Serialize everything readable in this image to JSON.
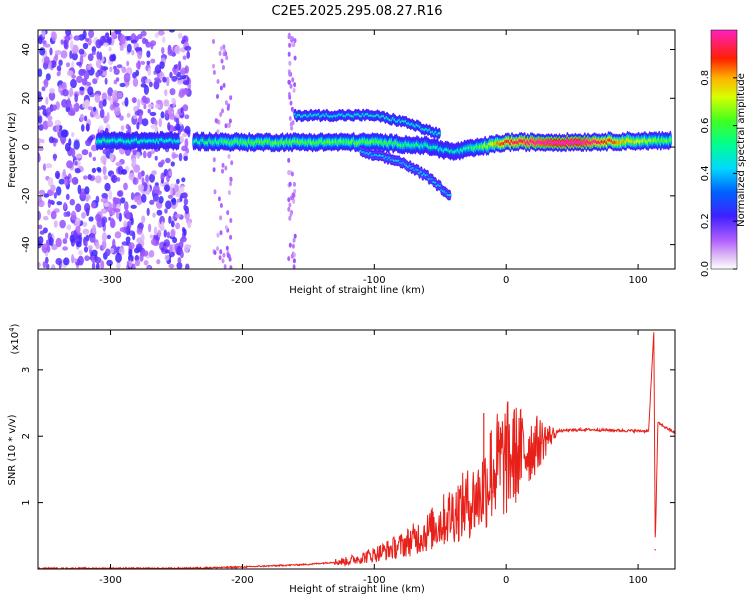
{
  "title": "C2E5.2025.295.08.27.R16",
  "chart_data": [
    {
      "type": "heatmap",
      "name": "spectrogram",
      "xlabel": "Height of straight line (km)",
      "ylabel": "Frequency (Hz)",
      "xlim": [
        -355,
        128
      ],
      "ylim": [
        -50,
        48
      ],
      "xticks": [
        -300,
        -200,
        -100,
        0,
        100
      ],
      "yticks": [
        -40,
        -20,
        0,
        20,
        40
      ],
      "colorbar": {
        "label": "Normalized spectral amplitude",
        "range": [
          0,
          1
        ],
        "ticks": [
          "0.0",
          "0.2",
          "0.4",
          "0.6",
          "0.8"
        ],
        "tick_values": [
          0,
          0.2,
          0.4,
          0.6,
          0.8
        ],
        "colors": [
          "#ffffff",
          "#e6c8f5",
          "#b070f0",
          "#8a2be2",
          "#2020ff",
          "#00d0ff",
          "#00ffa0",
          "#40ff20",
          "#ffff00",
          "#ffa000",
          "#ff2000",
          "#ff30c0"
        ]
      },
      "main_band": [
        {
          "x": -310,
          "f": 2.5,
          "amp": 0.35
        },
        {
          "x": -250,
          "f": 2.5,
          "amp": 0.3
        },
        {
          "x": -200,
          "f": 2.0,
          "amp": 0.45
        },
        {
          "x": -150,
          "f": 2.0,
          "amp": 0.45
        },
        {
          "x": -100,
          "f": 2.0,
          "amp": 0.45
        },
        {
          "x": -60,
          "f": 0.5,
          "amp": 0.35
        },
        {
          "x": -40,
          "f": -2.0,
          "amp": 0.3
        },
        {
          "x": -20,
          "f": 0.0,
          "amp": 0.45
        },
        {
          "x": 0,
          "f": 2.0,
          "amp": 0.75
        },
        {
          "x": 50,
          "f": 2.0,
          "amp": 0.92
        },
        {
          "x": 100,
          "f": 2.5,
          "amp": 0.55
        },
        {
          "x": 125,
          "f": 2.5,
          "amp": 0.45
        }
      ],
      "upper_branch": [
        {
          "x": -160,
          "f": 13,
          "amp": 0.3
        },
        {
          "x": -100,
          "f": 13,
          "amp": 0.3
        },
        {
          "x": -75,
          "f": 10,
          "amp": 0.3
        },
        {
          "x": -50,
          "f": 5,
          "amp": 0.3
        }
      ],
      "lower_branch": [
        {
          "x": -110,
          "f": -2,
          "amp": 0.25
        },
        {
          "x": -80,
          "f": -6,
          "amp": 0.25
        },
        {
          "x": -60,
          "f": -12,
          "amp": 0.25
        },
        {
          "x": -42,
          "f": -20,
          "amp": 0.25
        }
      ],
      "noise_region": [
        -355,
        -240
      ]
    },
    {
      "type": "line",
      "name": "snr",
      "xlabel": "Height of straight line (km)",
      "ylabel": "SNR (10 * v/v)",
      "scale_label": "(x10",
      "scale_exp": "4",
      "xlim": [
        -355,
        128
      ],
      "ylim": [
        0,
        3.6
      ],
      "xticks": [
        -300,
        -200,
        -100,
        0,
        100
      ],
      "yticks": [
        1,
        2,
        3
      ],
      "color": "#e8201a",
      "series": [
        {
          "x": -355,
          "y": 0.01
        },
        {
          "x": -250,
          "y": 0.01
        },
        {
          "x": -200,
          "y": 0.03
        },
        {
          "x": -150,
          "y": 0.07
        },
        {
          "x": -120,
          "y": 0.12
        },
        {
          "x": -100,
          "y": 0.22
        },
        {
          "x": -80,
          "y": 0.35
        },
        {
          "x": -60,
          "y": 0.55
        },
        {
          "x": -40,
          "y": 0.85
        },
        {
          "x": -20,
          "y": 1.1
        },
        {
          "x": -10,
          "y": 1.5
        },
        {
          "x": 0,
          "y": 1.65
        },
        {
          "x": 20,
          "y": 1.85
        },
        {
          "x": 40,
          "y": 2.08
        },
        {
          "x": 60,
          "y": 2.1
        },
        {
          "x": 100,
          "y": 2.08
        },
        {
          "x": 108,
          "y": 2.08
        },
        {
          "x": 112,
          "y": 3.6
        },
        {
          "x": 113,
          "y": 0.3
        },
        {
          "x": 115,
          "y": 2.2
        },
        {
          "x": 128,
          "y": 2.05
        }
      ],
      "spikes": [
        {
          "x": -17,
          "y": 2.35
        },
        {
          "x": -12,
          "y": 2.05
        },
        {
          "x": 112,
          "y": 3.6
        },
        {
          "x": 113,
          "y": 0.28
        }
      ]
    }
  ]
}
